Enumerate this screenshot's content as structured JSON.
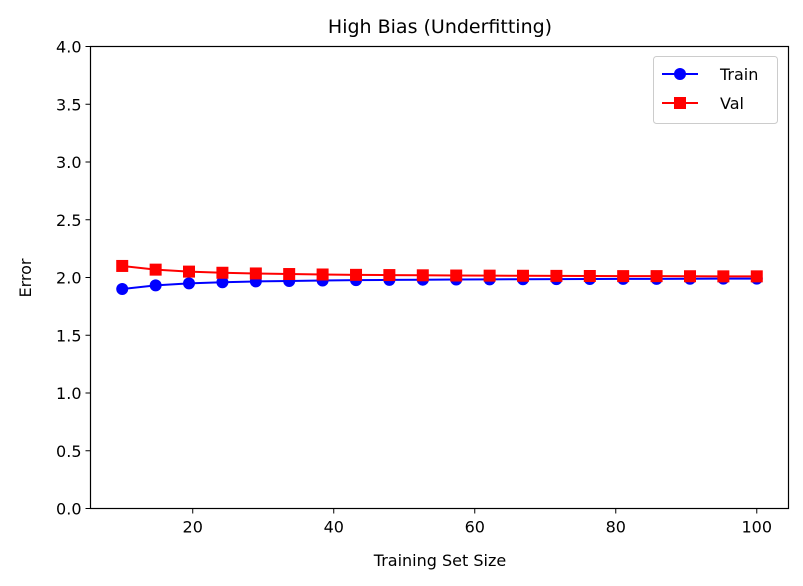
{
  "chart_data": {
    "type": "line",
    "title": "High Bias (Underfitting)",
    "xlabel": "Training Set Size",
    "ylabel": "Error",
    "xlim": [
      5.5,
      104.5
    ],
    "ylim": [
      0,
      4.0
    ],
    "xticks": [
      20,
      40,
      60,
      80,
      100
    ],
    "yticks": [
      0.0,
      0.5,
      1.0,
      1.5,
      2.0,
      2.5,
      3.0,
      3.5,
      4.0
    ],
    "ytick_labels": [
      "0.0",
      "0.5",
      "1.0",
      "1.5",
      "2.0",
      "2.5",
      "3.0",
      "3.5",
      "4.0"
    ],
    "grid": false,
    "legend_position": "top-right",
    "x": [
      10,
      14.74,
      19.47,
      24.21,
      28.95,
      33.68,
      38.42,
      43.16,
      47.89,
      52.63,
      57.37,
      62.11,
      66.84,
      71.58,
      76.32,
      81.05,
      85.79,
      90.53,
      95.26,
      100
    ],
    "series": [
      {
        "name": "Train",
        "color": "#0000ff",
        "marker": "circle",
        "values": [
          1.9,
          1.932,
          1.949,
          1.959,
          1.966,
          1.97,
          1.974,
          1.977,
          1.979,
          1.981,
          1.983,
          1.984,
          1.985,
          1.986,
          1.987,
          1.988,
          1.988,
          1.989,
          1.99,
          1.99
        ]
      },
      {
        "name": "Val",
        "color": "#ff0000",
        "marker": "square",
        "values": [
          2.1,
          2.068,
          2.051,
          2.041,
          2.035,
          2.03,
          2.026,
          2.023,
          2.021,
          2.019,
          2.017,
          2.016,
          2.015,
          2.014,
          2.013,
          2.012,
          2.012,
          2.011,
          2.01,
          2.01
        ]
      }
    ]
  }
}
